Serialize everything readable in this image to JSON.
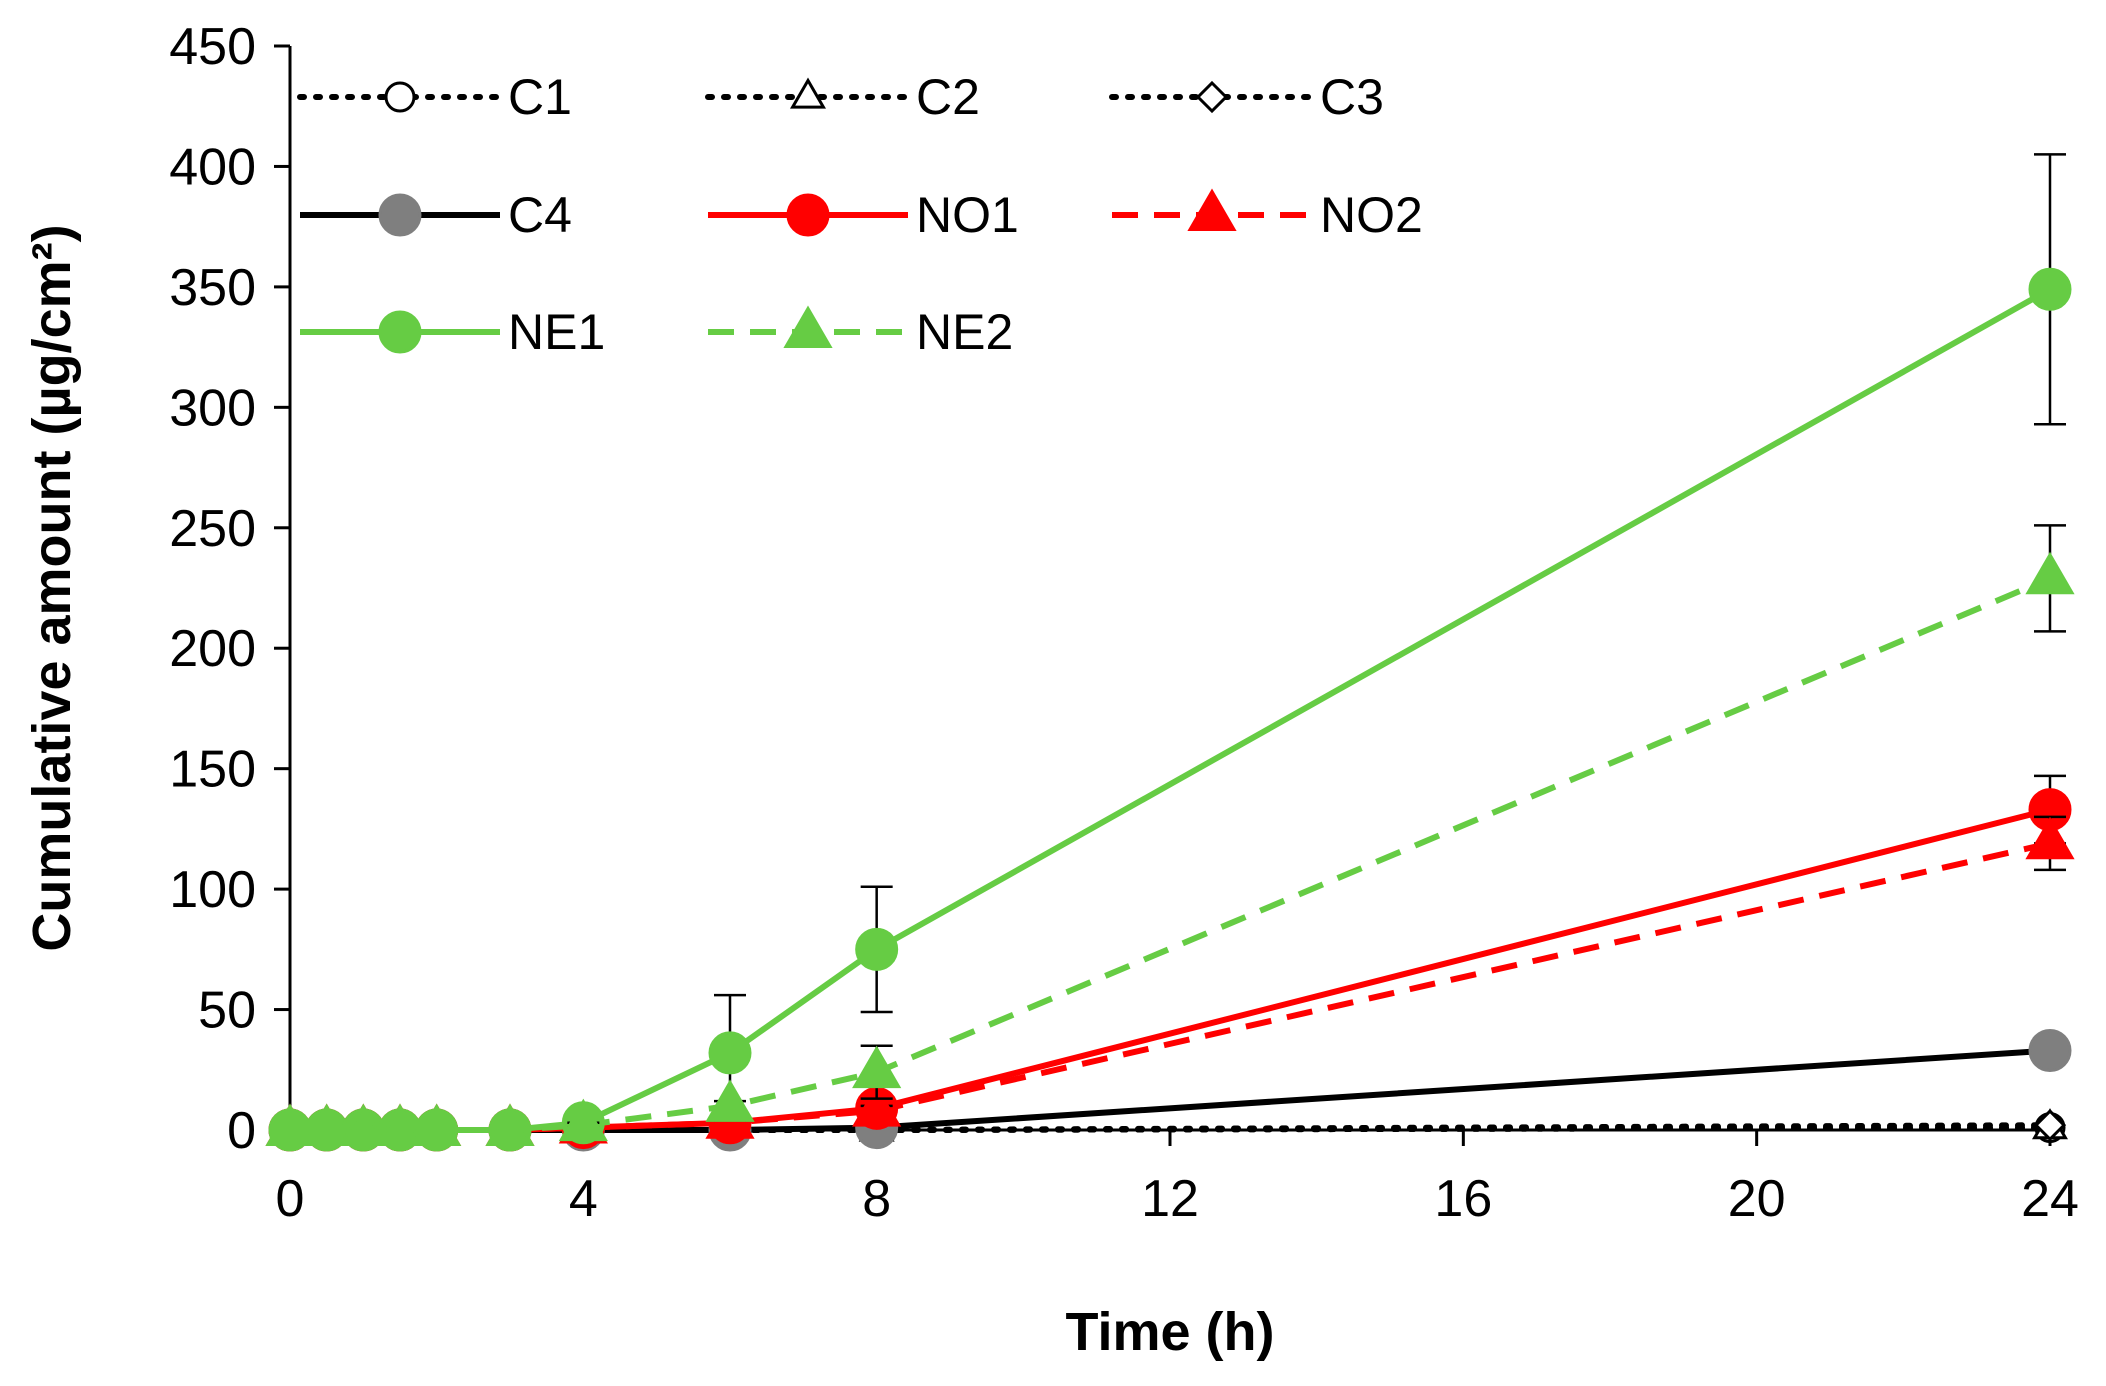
{
  "chart_data": {
    "type": "line",
    "title": "",
    "xlabel": "Time (h)",
    "ylabel": "Cumulative amount (µg/cm²)",
    "xlim": [
      0,
      24
    ],
    "ylim": [
      0,
      450
    ],
    "xticks": [
      0,
      4,
      8,
      12,
      16,
      20,
      24
    ],
    "yticks": [
      0,
      50,
      100,
      150,
      200,
      250,
      300,
      350,
      400,
      450
    ],
    "x": [
      0,
      0.5,
      1,
      1.5,
      2,
      3,
      4,
      6,
      8,
      24
    ],
    "legend_position": "top-left",
    "series": [
      {
        "name": "C1",
        "values": [
          0,
          0,
          0,
          0,
          0,
          0,
          0,
          0,
          0,
          1
        ],
        "color": "#000000",
        "line_style": "dotted",
        "marker": "circle",
        "marker_fill": "#ffffff"
      },
      {
        "name": "C2",
        "values": [
          0,
          0,
          0,
          0,
          0,
          0,
          0,
          0,
          0,
          1
        ],
        "color": "#000000",
        "line_style": "dotted",
        "marker": "triangle",
        "marker_fill": "#ffffff"
      },
      {
        "name": "C3",
        "values": [
          0,
          0,
          0,
          0,
          0,
          0,
          0,
          0,
          0,
          2
        ],
        "color": "#000000",
        "line_style": "dotted",
        "marker": "diamond",
        "marker_fill": "#ffffff"
      },
      {
        "name": "C4",
        "values": [
          0,
          0,
          0,
          0,
          0,
          0,
          0,
          0,
          1,
          33
        ],
        "color": "#000000",
        "line_style": "solid",
        "marker": "circle",
        "marker_fill": "#7f7f7f"
      },
      {
        "name": "NO1",
        "values": [
          0,
          0,
          0,
          0,
          0,
          0,
          1,
          3,
          9,
          133
        ],
        "error": [
          0,
          0,
          0,
          0,
          0,
          0,
          0,
          1,
          2,
          14
        ],
        "color": "#ff0000",
        "line_style": "solid",
        "marker": "circle",
        "marker_fill": "#ff0000"
      },
      {
        "name": "NO2",
        "values": [
          0,
          0,
          0,
          0,
          0,
          0,
          1,
          3,
          8,
          119
        ],
        "error": [
          0,
          0,
          0,
          0,
          0,
          0,
          0,
          1,
          2,
          11
        ],
        "color": "#ff0000",
        "line_style": "dashed",
        "marker": "triangle",
        "marker_fill": "#ff0000"
      },
      {
        "name": "NE1",
        "values": [
          0,
          0,
          0,
          0,
          0,
          0,
          3,
          32,
          75,
          349
        ],
        "error": [
          0,
          0,
          0,
          0,
          0,
          0,
          1,
          24,
          26,
          56
        ],
        "color": "#66cc44",
        "line_style": "solid",
        "marker": "circle",
        "marker_fill": "#66cc44"
      },
      {
        "name": "NE2",
        "values": [
          0,
          0,
          0,
          0,
          0,
          0,
          2,
          10,
          24,
          229
        ],
        "error": [
          0,
          0,
          0,
          0,
          0,
          0,
          1,
          2,
          11,
          22
        ],
        "color": "#66cc44",
        "line_style": "dashed",
        "marker": "triangle",
        "marker_fill": "#66cc44"
      }
    ]
  }
}
